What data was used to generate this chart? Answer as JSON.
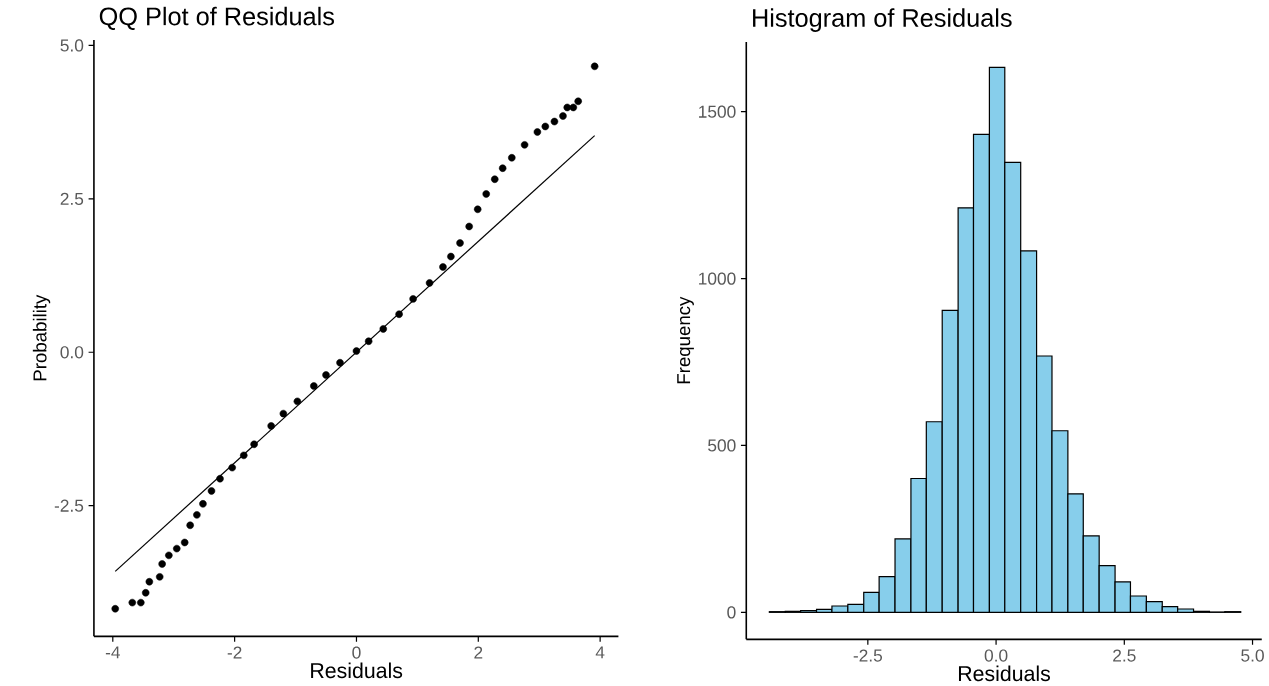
{
  "chart_data": [
    {
      "type": "scatter",
      "title": "QQ Plot of Residuals",
      "xlabel": "Residuals",
      "ylabel": "Probability",
      "xlim": [
        -4.31,
        4.3
      ],
      "ylim": [
        -4.63,
        5.09
      ],
      "xticks": [
        -4,
        -2,
        0,
        2,
        4
      ],
      "yticks": [
        {
          "value": -2.5,
          "label": "-2.5"
        },
        {
          "value": 0,
          "label": "0.0"
        },
        {
          "value": 2.5,
          "label": "2.5"
        },
        {
          "value": 5,
          "label": "5.0"
        }
      ],
      "series": [
        {
          "type": "scatter",
          "color": "#000000",
          "marker": "circle",
          "x": [
            -3.96,
            -3.68,
            -3.54,
            -3.46,
            -3.4,
            -3.23,
            -3.19,
            -3.08,
            -2.95,
            -2.82,
            -2.73,
            -2.62,
            -2.52,
            -2.38,
            -2.24,
            -2.04,
            -1.85,
            -1.68,
            -1.4,
            -1.2,
            -0.97,
            -0.7,
            -0.5,
            -0.27,
            0,
            0.2,
            0.44,
            0.7,
            0.93,
            1.2,
            1.42,
            1.55,
            1.7,
            1.85,
            1.99,
            2.13,
            2.27,
            2.4,
            2.55,
            2.76,
            2.97,
            3.1,
            3.25,
            3.39,
            3.46,
            3.56,
            3.64,
            3.91
          ],
          "values": [
            -4.18,
            -4.08,
            -4.08,
            -3.92,
            -3.74,
            -3.66,
            -3.45,
            -3.31,
            -3.2,
            -3.1,
            -2.82,
            -2.65,
            -2.47,
            -2.26,
            -2.06,
            -1.88,
            -1.68,
            -1.5,
            -1.2,
            -1.0,
            -0.8,
            -0.55,
            -0.37,
            -0.17,
            0.02,
            0.18,
            0.38,
            0.62,
            0.87,
            1.13,
            1.39,
            1.56,
            1.78,
            2.05,
            2.33,
            2.58,
            2.82,
            3.0,
            3.17,
            3.38,
            3.59,
            3.68,
            3.76,
            3.85,
            3.99,
            3.99,
            4.09,
            4.66
          ]
        },
        {
          "type": "line",
          "color": "#000000",
          "x": [
            -3.96,
            3.91
          ],
          "values": [
            -3.57,
            3.53
          ]
        }
      ]
    },
    {
      "type": "histogram",
      "title": "Histogram of Residuals",
      "xlabel": "Residuals",
      "ylabel": "Frequency",
      "color": "#87ceeb",
      "xlim": [
        -4.87,
        5.18
      ],
      "ylim": [
        -81,
        1709
      ],
      "xticks": [
        {
          "value": -2.5,
          "label": "-2.5"
        },
        {
          "value": 0,
          "label": "0.0"
        },
        {
          "value": 2.5,
          "label": "2.5"
        },
        {
          "value": 5,
          "label": "5.0"
        }
      ],
      "yticks": [
        0,
        500,
        1000,
        1500
      ],
      "bins": [
        -4.42,
        -4.11,
        -3.81,
        -3.5,
        -3.2,
        -2.89,
        -2.58,
        -2.28,
        -1.97,
        -1.66,
        -1.36,
        -1.05,
        -0.74,
        -0.44,
        -0.13,
        0.17,
        0.48,
        0.79,
        1.09,
        1.4,
        1.7,
        2.01,
        2.32,
        2.62,
        2.93,
        3.24,
        3.54,
        3.85,
        4.16,
        4.46,
        4.77
      ],
      "values": [
        2,
        3,
        5,
        9,
        19,
        24,
        60,
        107,
        220,
        401,
        571,
        905,
        1212,
        1432,
        1633,
        1348,
        1083,
        768,
        544,
        355,
        229,
        140,
        91,
        49,
        32,
        17,
        10,
        3,
        1,
        2
      ]
    }
  ]
}
